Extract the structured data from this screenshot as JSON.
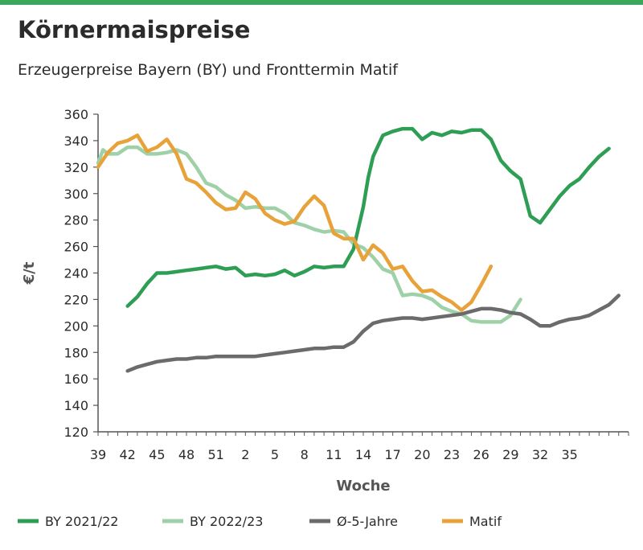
{
  "title": "Körnermaispreise",
  "subtitle": "Erzeugerpreise Bayern (BY) und Fronttermin Matif",
  "chart_data": {
    "type": "line",
    "title": "Körnermaispreise",
    "subtitle": "Erzeugerpreise Bayern (BY) und Fronttermin Matif",
    "xlabel": "Woche",
    "ylabel": "€/t",
    "ylim": [
      120,
      360
    ],
    "yticks": [
      120,
      140,
      160,
      180,
      200,
      220,
      240,
      260,
      280,
      300,
      320,
      340,
      360
    ],
    "x_tick_labels": [
      "39",
      "42",
      "45",
      "48",
      "51",
      "2",
      "5",
      "8",
      "11",
      "14",
      "17",
      "20",
      "23",
      "26",
      "29",
      "32",
      "35"
    ],
    "legend_position": "bottom",
    "grid": false,
    "series": [
      {
        "name": "BY 2021/22",
        "color": "#2e9e55",
        "points": [
          [
            3,
            215
          ],
          [
            4,
            222
          ],
          [
            5,
            232
          ],
          [
            6,
            240
          ],
          [
            7,
            240
          ],
          [
            8,
            241
          ],
          [
            9,
            242
          ],
          [
            10,
            243
          ],
          [
            11,
            244
          ],
          [
            12,
            245
          ],
          [
            13,
            243
          ],
          [
            14,
            244
          ],
          [
            15,
            238
          ],
          [
            16,
            239
          ],
          [
            17,
            238
          ],
          [
            18,
            239
          ],
          [
            19,
            242
          ],
          [
            20,
            238
          ],
          [
            21,
            241
          ],
          [
            22,
            245
          ],
          [
            23,
            244
          ],
          [
            24,
            245
          ],
          [
            25,
            245
          ],
          [
            26,
            258
          ],
          [
            27,
            290
          ],
          [
            27.5,
            312
          ],
          [
            28,
            328
          ],
          [
            29,
            344
          ],
          [
            30,
            347
          ],
          [
            31,
            349
          ],
          [
            32,
            349
          ],
          [
            33,
            341
          ],
          [
            34,
            346
          ],
          [
            35,
            344
          ],
          [
            36,
            347
          ],
          [
            37,
            346
          ],
          [
            38,
            348
          ],
          [
            39,
            348
          ],
          [
            40,
            341
          ],
          [
            41,
            325
          ],
          [
            42,
            317
          ],
          [
            43,
            311
          ],
          [
            44,
            283
          ],
          [
            45,
            278
          ],
          [
            46,
            288
          ],
          [
            47,
            298
          ],
          [
            48,
            306
          ],
          [
            49,
            311
          ],
          [
            50,
            320
          ],
          [
            51,
            328
          ],
          [
            52,
            334
          ]
        ]
      },
      {
        "name": "BY 2022/23",
        "color": "#9fd1a8",
        "points": [
          [
            0,
            323
          ],
          [
            0.5,
            333
          ],
          [
            1,
            330
          ],
          [
            2,
            330
          ],
          [
            3,
            335
          ],
          [
            4,
            335
          ],
          [
            5,
            330
          ],
          [
            6,
            330
          ],
          [
            7,
            331
          ],
          [
            8,
            333
          ],
          [
            9,
            330
          ],
          [
            10,
            320
          ],
          [
            11,
            308
          ],
          [
            12,
            305
          ],
          [
            13,
            299
          ],
          [
            14,
            295
          ],
          [
            15,
            289
          ],
          [
            16,
            290
          ],
          [
            17,
            289
          ],
          [
            18,
            289
          ],
          [
            19,
            285
          ],
          [
            20,
            278
          ],
          [
            21,
            276
          ],
          [
            22,
            273
          ],
          [
            23,
            271
          ],
          [
            24,
            272
          ],
          [
            25,
            271
          ],
          [
            26,
            262
          ],
          [
            27,
            259
          ],
          [
            28,
            252
          ],
          [
            29,
            243
          ],
          [
            30,
            240
          ],
          [
            31,
            223
          ],
          [
            32,
            224
          ],
          [
            33,
            223
          ],
          [
            34,
            220
          ],
          [
            35,
            214
          ],
          [
            36,
            211
          ],
          [
            37,
            209
          ],
          [
            38,
            204
          ],
          [
            39,
            203
          ],
          [
            40,
            203
          ],
          [
            41,
            203
          ],
          [
            42,
            208
          ],
          [
            43,
            220
          ]
        ]
      },
      {
        "name": "Ø-5-Jahre",
        "color": "#6b6b6b",
        "points": [
          [
            3,
            166
          ],
          [
            4,
            169
          ],
          [
            5,
            171
          ],
          [
            6,
            173
          ],
          [
            7,
            174
          ],
          [
            8,
            175
          ],
          [
            9,
            175
          ],
          [
            10,
            176
          ],
          [
            11,
            176
          ],
          [
            12,
            177
          ],
          [
            13,
            177
          ],
          [
            14,
            177
          ],
          [
            15,
            177
          ],
          [
            16,
            177
          ],
          [
            17,
            178
          ],
          [
            18,
            179
          ],
          [
            19,
            180
          ],
          [
            20,
            181
          ],
          [
            21,
            182
          ],
          [
            22,
            183
          ],
          [
            23,
            183
          ],
          [
            24,
            184
          ],
          [
            25,
            184
          ],
          [
            26,
            188
          ],
          [
            27,
            196
          ],
          [
            28,
            202
          ],
          [
            29,
            204
          ],
          [
            30,
            205
          ],
          [
            31,
            206
          ],
          [
            32,
            206
          ],
          [
            33,
            205
          ],
          [
            34,
            206
          ],
          [
            35,
            207
          ],
          [
            36,
            208
          ],
          [
            37,
            209
          ],
          [
            38,
            211
          ],
          [
            39,
            213
          ],
          [
            40,
            213
          ],
          [
            41,
            212
          ],
          [
            42,
            210
          ],
          [
            43,
            209
          ],
          [
            44,
            205
          ],
          [
            45,
            200
          ],
          [
            46,
            200
          ],
          [
            47,
            203
          ],
          [
            48,
            205
          ],
          [
            49,
            206
          ],
          [
            50,
            208
          ],
          [
            51,
            212
          ],
          [
            52,
            216
          ],
          [
            53,
            223
          ]
        ]
      },
      {
        "name": "Matif",
        "color": "#e8a23a",
        "points": [
          [
            0,
            320
          ],
          [
            1,
            331
          ],
          [
            2,
            338
          ],
          [
            3,
            340
          ],
          [
            4,
            344
          ],
          [
            5,
            332
          ],
          [
            6,
            335
          ],
          [
            7,
            341
          ],
          [
            8,
            330
          ],
          [
            9,
            311
          ],
          [
            10,
            308
          ],
          [
            11,
            301
          ],
          [
            12,
            293
          ],
          [
            13,
            288
          ],
          [
            14,
            289
          ],
          [
            15,
            301
          ],
          [
            16,
            296
          ],
          [
            17,
            285
          ],
          [
            18,
            280
          ],
          [
            19,
            277
          ],
          [
            20,
            279
          ],
          [
            21,
            290
          ],
          [
            22,
            298
          ],
          [
            23,
            291
          ],
          [
            24,
            270
          ],
          [
            25,
            266
          ],
          [
            26,
            266
          ],
          [
            27,
            250
          ],
          [
            28,
            261
          ],
          [
            29,
            255
          ],
          [
            30,
            243
          ],
          [
            31,
            245
          ],
          [
            32,
            234
          ],
          [
            33,
            226
          ],
          [
            34,
            227
          ],
          [
            35,
            222
          ],
          [
            36,
            218
          ],
          [
            37,
            212
          ],
          [
            38,
            218
          ],
          [
            39,
            231
          ],
          [
            40,
            245
          ]
        ]
      }
    ]
  }
}
